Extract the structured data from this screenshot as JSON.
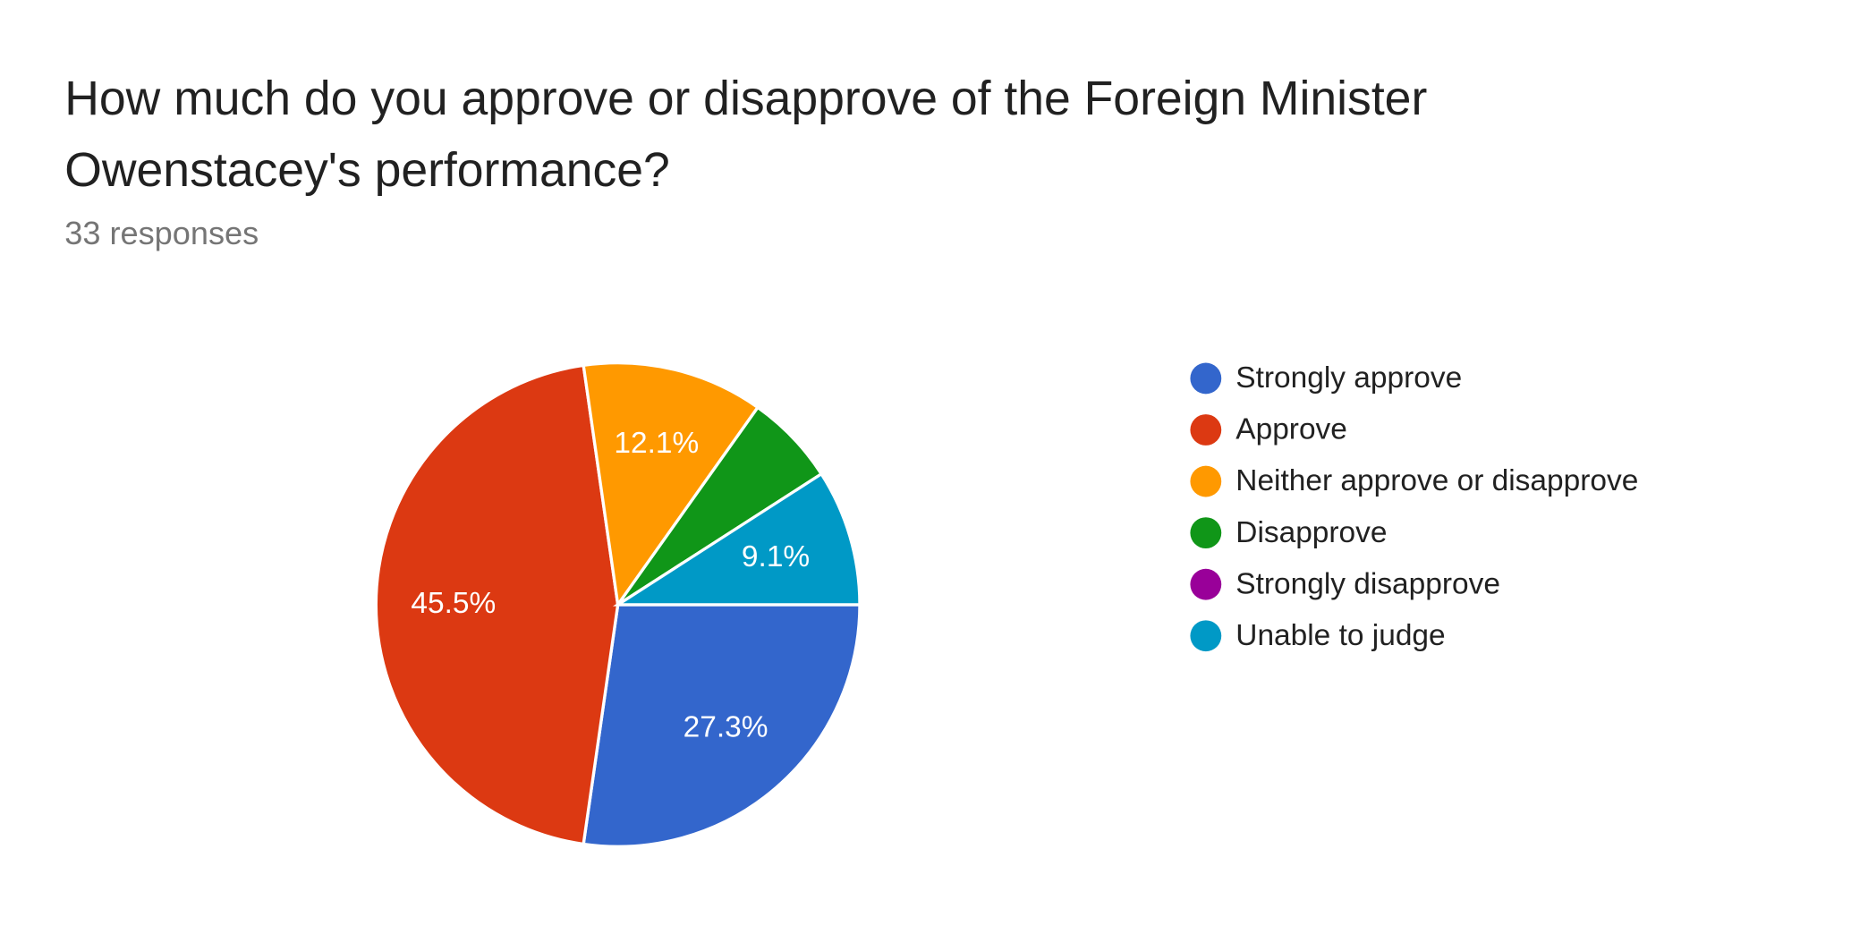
{
  "chart_data": {
    "type": "pie",
    "title": [
      "How much do you approve or disapprove of the Foreign Minister",
      "Owenstacey's performance?"
    ],
    "subtitle": "33 responses",
    "categories": [
      "Strongly approve",
      "Approve",
      "Neither approve or disapprove",
      "Disapprove",
      "Strongly disapprove",
      "Unable to judge"
    ],
    "values": [
      27.3,
      45.5,
      12.1,
      6.1,
      0,
      9.1
    ],
    "value_labels": [
      "27.3%",
      "45.5%",
      "12.1%",
      null,
      null,
      "9.1%"
    ],
    "colors": [
      "#3366cc",
      "#dc3912",
      "#ff9900",
      "#109618",
      "#990099",
      "#0099c6"
    ],
    "legend": "right"
  }
}
